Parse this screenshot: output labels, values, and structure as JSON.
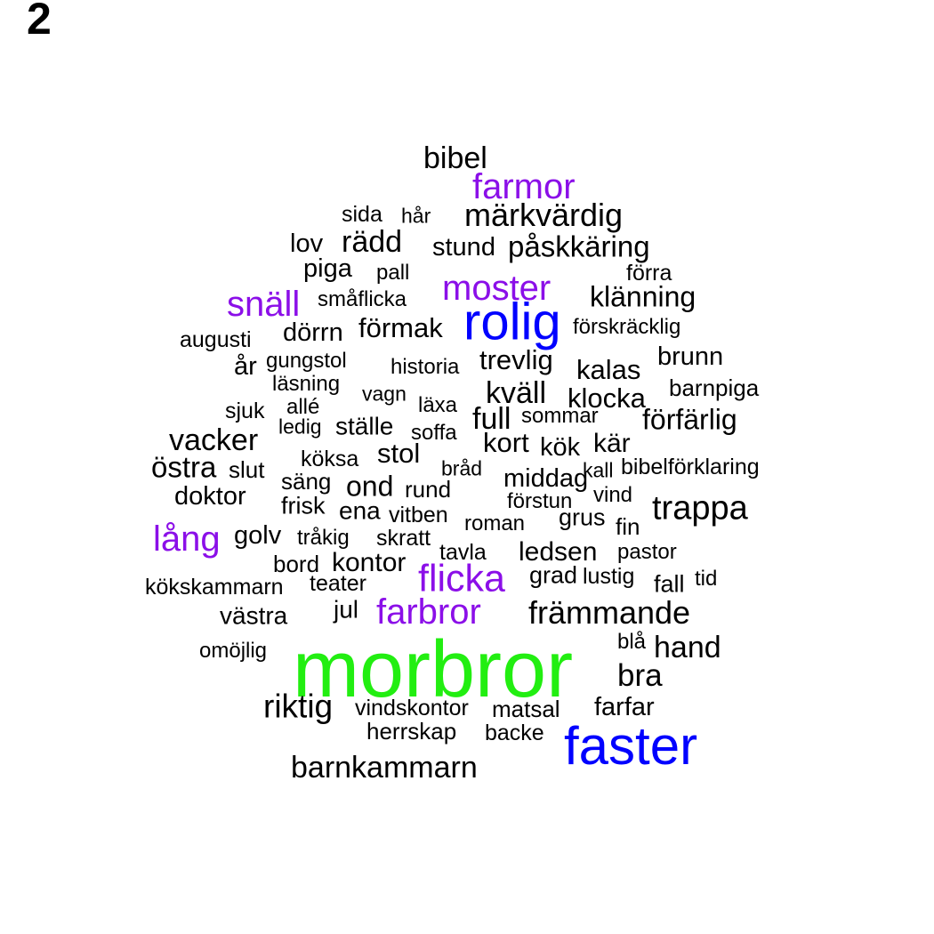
{
  "panel_label": "2",
  "palette": {
    "black": "#000000",
    "purple": "#8b0fe8",
    "blue": "#0000ff",
    "green": "#22ee11"
  },
  "words": [
    {
      "text": "bibel",
      "color": "black"
    },
    {
      "text": "farmor",
      "color": "purple"
    },
    {
      "text": "märkvärdig",
      "color": "black"
    },
    {
      "text": "sida",
      "color": "black"
    },
    {
      "text": "hår",
      "color": "black"
    },
    {
      "text": "lov",
      "color": "black"
    },
    {
      "text": "rädd",
      "color": "black"
    },
    {
      "text": "stund",
      "color": "black"
    },
    {
      "text": "påskkäring",
      "color": "black"
    },
    {
      "text": "piga",
      "color": "black"
    },
    {
      "text": "pall",
      "color": "black"
    },
    {
      "text": "förra",
      "color": "black"
    },
    {
      "text": "snäll",
      "color": "purple"
    },
    {
      "text": "småflicka",
      "color": "black"
    },
    {
      "text": "moster",
      "color": "purple"
    },
    {
      "text": "klänning",
      "color": "black"
    },
    {
      "text": "rolig",
      "color": "blue"
    },
    {
      "text": "augusti",
      "color": "black"
    },
    {
      "text": "dörrn",
      "color": "black"
    },
    {
      "text": "förmak",
      "color": "black"
    },
    {
      "text": "förskräcklig",
      "color": "black"
    },
    {
      "text": "år",
      "color": "black"
    },
    {
      "text": "gungstol",
      "color": "black"
    },
    {
      "text": "historia",
      "color": "black"
    },
    {
      "text": "trevlig",
      "color": "black"
    },
    {
      "text": "kalas",
      "color": "black"
    },
    {
      "text": "brunn",
      "color": "black"
    },
    {
      "text": "läsning",
      "color": "black"
    },
    {
      "text": "vagn",
      "color": "black"
    },
    {
      "text": "kväll",
      "color": "black"
    },
    {
      "text": "klocka",
      "color": "black"
    },
    {
      "text": "barnpiga",
      "color": "black"
    },
    {
      "text": "sjuk",
      "color": "black"
    },
    {
      "text": "allé",
      "color": "black"
    },
    {
      "text": "läxa",
      "color": "black"
    },
    {
      "text": "full",
      "color": "black"
    },
    {
      "text": "sommar",
      "color": "black"
    },
    {
      "text": "förfärlig",
      "color": "black"
    },
    {
      "text": "ledig",
      "color": "black"
    },
    {
      "text": "ställe",
      "color": "black"
    },
    {
      "text": "soffa",
      "color": "black"
    },
    {
      "text": "vacker",
      "color": "black"
    },
    {
      "text": "kort",
      "color": "black"
    },
    {
      "text": "kök",
      "color": "black"
    },
    {
      "text": "kär",
      "color": "black"
    },
    {
      "text": "köksa",
      "color": "black"
    },
    {
      "text": "stol",
      "color": "black"
    },
    {
      "text": "östra",
      "color": "black"
    },
    {
      "text": "slut",
      "color": "black"
    },
    {
      "text": "bråd",
      "color": "black"
    },
    {
      "text": "kall",
      "color": "black"
    },
    {
      "text": "bibelförklaring",
      "color": "black"
    },
    {
      "text": "säng",
      "color": "black"
    },
    {
      "text": "ond",
      "color": "black"
    },
    {
      "text": "rund",
      "color": "black"
    },
    {
      "text": "middag",
      "color": "black"
    },
    {
      "text": "doktor",
      "color": "black"
    },
    {
      "text": "vind",
      "color": "black"
    },
    {
      "text": "förstun",
      "color": "black"
    },
    {
      "text": "frisk",
      "color": "black"
    },
    {
      "text": "trappa",
      "color": "black"
    },
    {
      "text": "ena",
      "color": "black"
    },
    {
      "text": "vitben",
      "color": "black"
    },
    {
      "text": "grus",
      "color": "black"
    },
    {
      "text": "roman",
      "color": "black"
    },
    {
      "text": "fin",
      "color": "black"
    },
    {
      "text": "lång",
      "color": "purple"
    },
    {
      "text": "golv",
      "color": "black"
    },
    {
      "text": "tråkig",
      "color": "black"
    },
    {
      "text": "skratt",
      "color": "black"
    },
    {
      "text": "tavla",
      "color": "black"
    },
    {
      "text": "ledsen",
      "color": "black"
    },
    {
      "text": "pastor",
      "color": "black"
    },
    {
      "text": "bord",
      "color": "black"
    },
    {
      "text": "kontor",
      "color": "black"
    },
    {
      "text": "flicka",
      "color": "purple"
    },
    {
      "text": "grad",
      "color": "black"
    },
    {
      "text": "lustig",
      "color": "black"
    },
    {
      "text": "tid",
      "color": "black"
    },
    {
      "text": "fall",
      "color": "black"
    },
    {
      "text": "kökskammarn",
      "color": "black"
    },
    {
      "text": "teater",
      "color": "black"
    },
    {
      "text": "jul",
      "color": "black"
    },
    {
      "text": "farbror",
      "color": "purple"
    },
    {
      "text": "främmande",
      "color": "black"
    },
    {
      "text": "västra",
      "color": "black"
    },
    {
      "text": "blå",
      "color": "black"
    },
    {
      "text": "hand",
      "color": "black"
    },
    {
      "text": "omöjlig",
      "color": "black"
    },
    {
      "text": "morbror",
      "color": "green"
    },
    {
      "text": "bra",
      "color": "black"
    },
    {
      "text": "riktig",
      "color": "black"
    },
    {
      "text": "vindskontor",
      "color": "black"
    },
    {
      "text": "matsal",
      "color": "black"
    },
    {
      "text": "farfar",
      "color": "black"
    },
    {
      "text": "herrskap",
      "color": "black"
    },
    {
      "text": "backe",
      "color": "black"
    },
    {
      "text": "faster",
      "color": "blue"
    },
    {
      "text": "barnkammarn",
      "color": "black"
    }
  ]
}
